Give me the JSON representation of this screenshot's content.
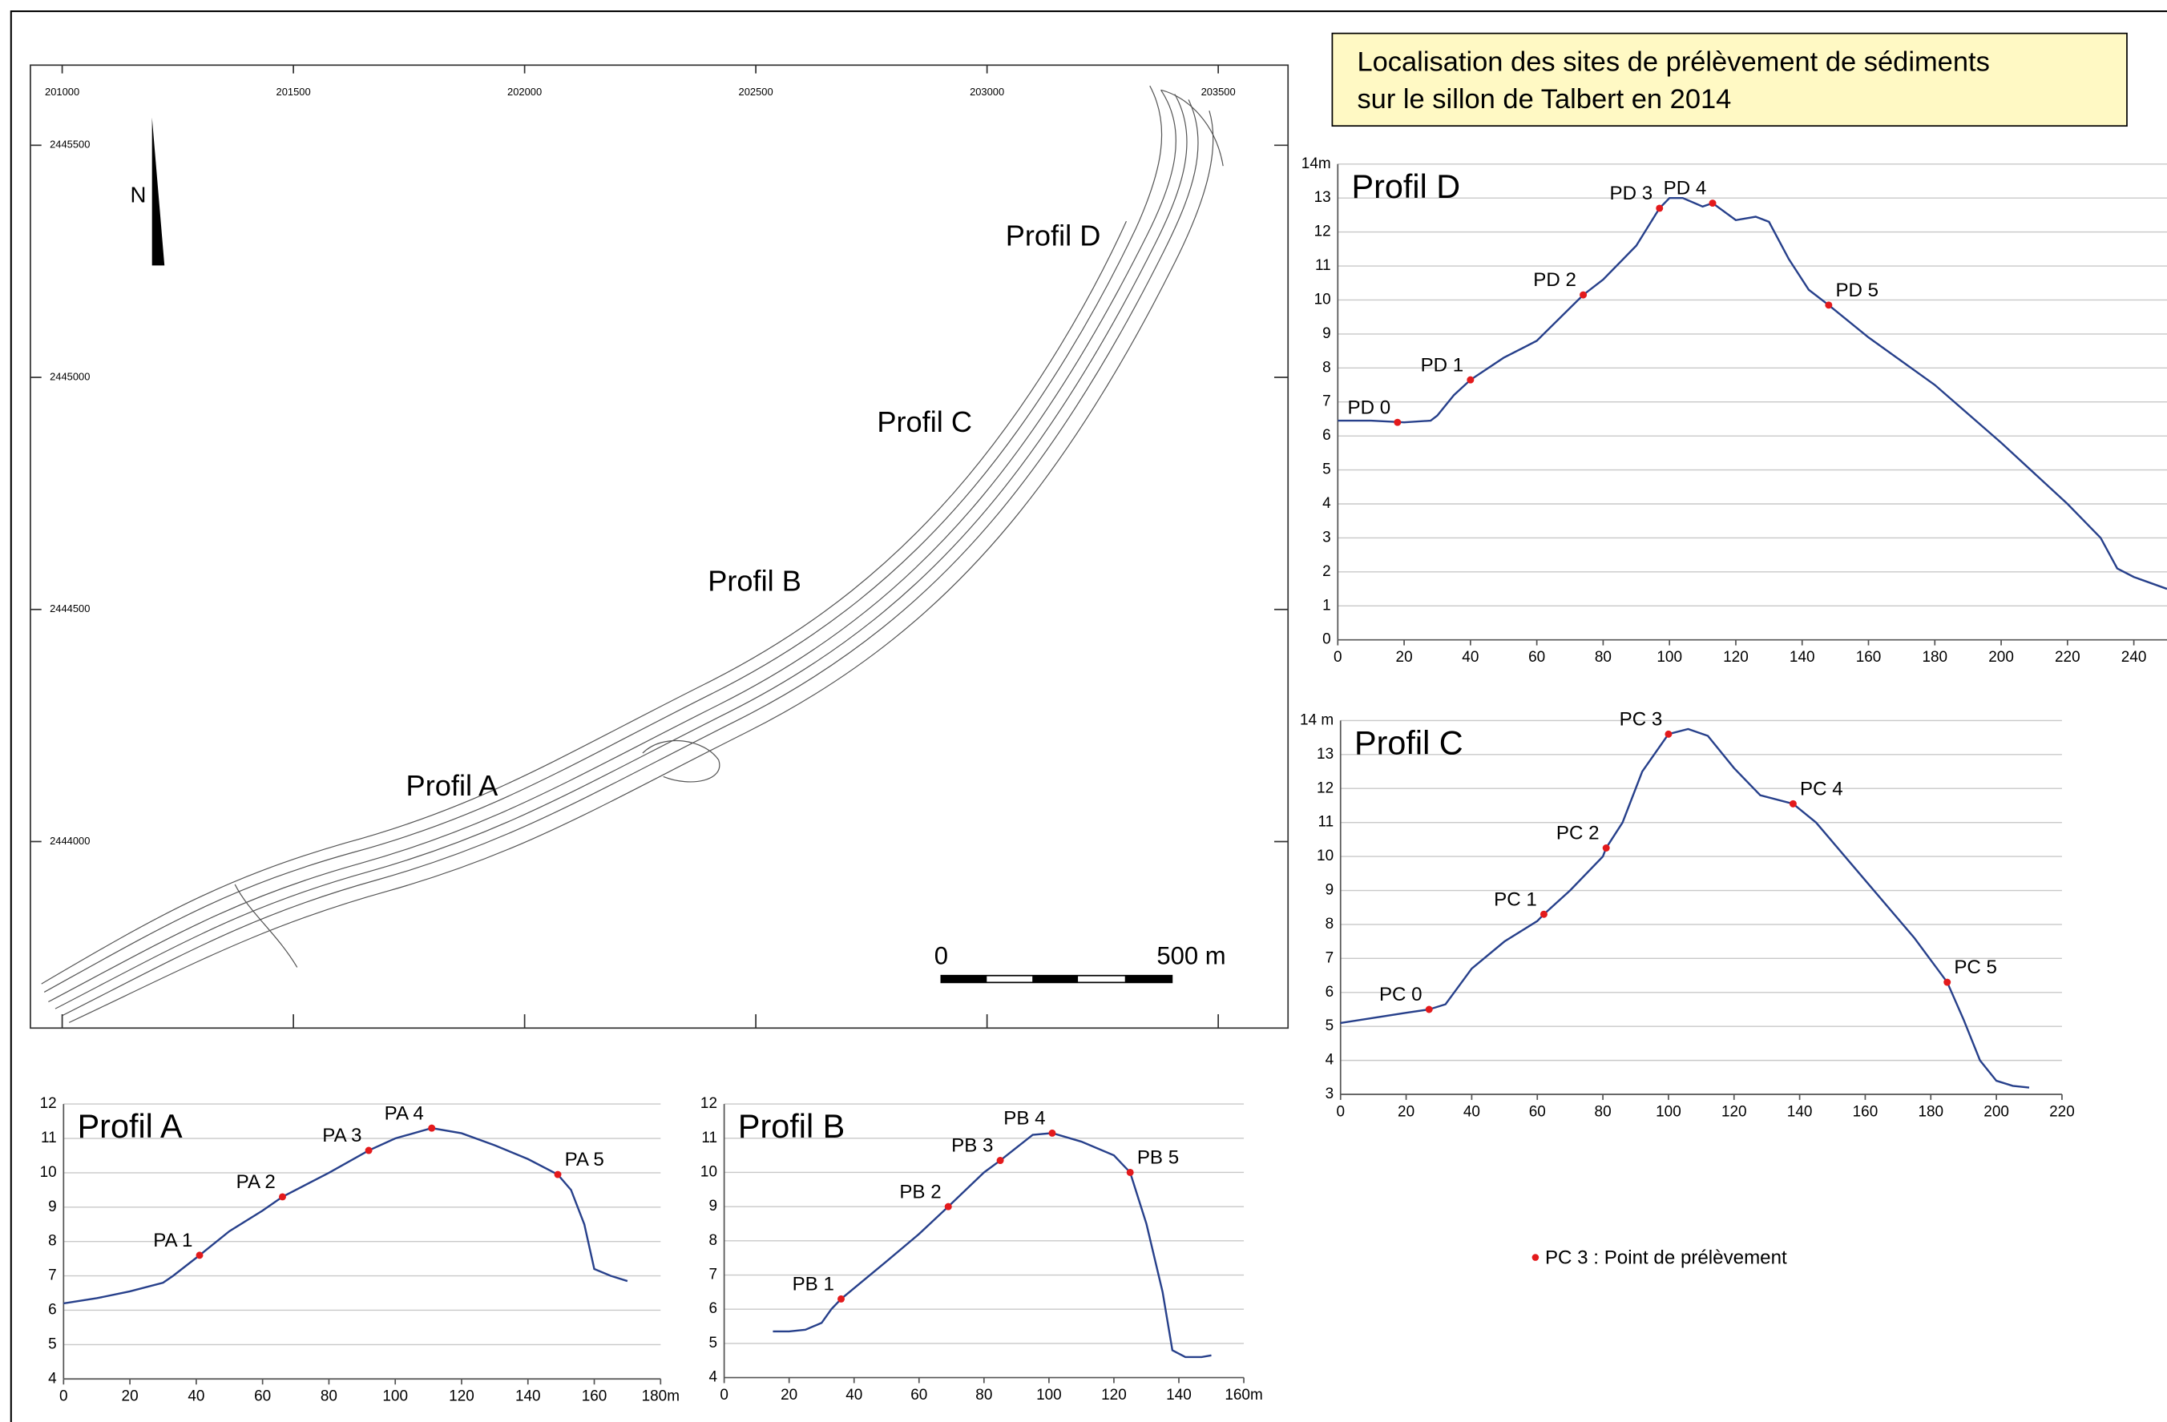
{
  "title_lines": [
    "Localisation des sites de prélèvement de sédiments",
    "sur le sillon de Talbert en 2014"
  ],
  "legend": "PC 3 : Point de prélèvement",
  "map": {
    "x_labels": [
      201000,
      201500,
      202000,
      202500,
      203000,
      203500
    ],
    "y_labels": [
      2445500,
      2445000,
      2444500,
      2444000
    ],
    "profiles": [
      "Profil D",
      "Profil C",
      "Profil B",
      "Profil A"
    ],
    "north": "N",
    "scale_start": "0",
    "scale_end": "500 m"
  },
  "chart_data": [
    {
      "type": "line",
      "title": "Profil D",
      "x": [
        0,
        10,
        20,
        28,
        30,
        35,
        40,
        50,
        60,
        74,
        80,
        90,
        97,
        100,
        104,
        110,
        113,
        120,
        126,
        130,
        136,
        142,
        148,
        160,
        180,
        200,
        220,
        230,
        235,
        240,
        250
      ],
      "series": [
        {
          "color": "#27408b",
          "values": [
            6.45,
            6.45,
            6.4,
            6.45,
            6.6,
            7.2,
            7.65,
            8.3,
            8.8,
            10.15,
            10.6,
            11.6,
            12.7,
            13.0,
            13.0,
            12.75,
            12.85,
            12.35,
            12.45,
            12.3,
            11.2,
            10.3,
            9.85,
            8.9,
            7.5,
            5.8,
            4.0,
            3.0,
            2.1,
            1.85,
            1.5
          ]
        }
      ],
      "points": {
        "color": "#e31a1c",
        "labels": [
          "PD 0",
          "PD 1",
          "PD 2",
          "PD 3",
          "PD 4",
          "PD 5"
        ],
        "x": [
          18,
          40,
          74,
          97,
          113,
          148
        ],
        "values": [
          6.4,
          7.65,
          10.15,
          12.7,
          12.85,
          9.85
        ]
      },
      "xlim": [
        0,
        250
      ],
      "ylim": [
        0,
        14
      ],
      "xticks": [
        0,
        20,
        40,
        60,
        80,
        100,
        120,
        140,
        160,
        180,
        200,
        220,
        240
      ],
      "yticks": [
        0,
        1,
        2,
        3,
        4,
        5,
        6,
        7,
        8,
        9,
        10,
        11,
        12,
        13,
        {
          "value": 14,
          "label": "14m"
        }
      ],
      "grid": true
    },
    {
      "type": "line",
      "title": "Profil C",
      "x": [
        0,
        10,
        20,
        27,
        32,
        40,
        50,
        60,
        62,
        70,
        80,
        81,
        86,
        92,
        100,
        106,
        112,
        120,
        128,
        138,
        145,
        160,
        175,
        185,
        190,
        195,
        200,
        205,
        210
      ],
      "series": [
        {
          "color": "#27408b",
          "values": [
            5.1,
            5.25,
            5.4,
            5.5,
            5.65,
            6.7,
            7.5,
            8.1,
            8.3,
            9.0,
            10.0,
            10.25,
            11.0,
            12.5,
            13.6,
            13.75,
            13.55,
            12.6,
            11.8,
            11.55,
            11.0,
            9.3,
            7.6,
            6.3,
            5.2,
            4.0,
            3.4,
            3.25,
            3.2
          ]
        }
      ],
      "points": {
        "color": "#e31a1c",
        "labels": [
          "PC 0",
          "PC 1",
          "PC 2",
          "PC 3",
          "PC 4",
          "PC 5"
        ],
        "x": [
          27,
          62,
          81,
          100,
          138,
          185
        ],
        "values": [
          5.5,
          8.3,
          10.25,
          13.6,
          11.55,
          6.3
        ]
      },
      "xlim": [
        0,
        220
      ],
      "ylim": [
        3,
        14
      ],
      "xticks": [
        0,
        20,
        40,
        60,
        80,
        100,
        120,
        140,
        160,
        180,
        200,
        220
      ],
      "yticks": [
        3,
        4,
        5,
        6,
        7,
        8,
        9,
        10,
        11,
        12,
        13,
        {
          "value": 14,
          "label": "14 m"
        }
      ],
      "grid": true
    },
    {
      "type": "line",
      "title": "Profil A",
      "x": [
        0,
        10,
        20,
        30,
        33,
        41,
        50,
        60,
        66,
        80,
        92,
        100,
        111,
        120,
        130,
        140,
        149,
        153,
        157,
        160,
        165,
        170
      ],
      "series": [
        {
          "color": "#27408b",
          "values": [
            6.2,
            6.35,
            6.55,
            6.8,
            7.0,
            7.6,
            8.3,
            8.9,
            9.3,
            10.0,
            10.65,
            11.0,
            11.3,
            11.15,
            10.8,
            10.4,
            9.95,
            9.5,
            8.5,
            7.2,
            7.0,
            6.85
          ]
        }
      ],
      "points": {
        "color": "#e31a1c",
        "labels": [
          "PA 1",
          "PA 2",
          "PA 3",
          "PA 4",
          "PA 5"
        ],
        "x": [
          41,
          66,
          92,
          111,
          149
        ],
        "values": [
          7.6,
          9.3,
          10.65,
          11.3,
          9.95
        ]
      },
      "xlim": [
        0,
        180
      ],
      "ylim": [
        4,
        12
      ],
      "xticks": [
        0,
        20,
        40,
        60,
        80,
        100,
        120,
        140,
        160,
        {
          "value": 180,
          "label": "180m"
        }
      ],
      "yticks": [
        4,
        5,
        6,
        7,
        8,
        9,
        10,
        11,
        12
      ],
      "grid": true
    },
    {
      "type": "line",
      "title": "Profil B",
      "x": [
        15,
        20,
        25,
        30,
        33,
        36,
        50,
        60,
        69,
        80,
        85,
        95,
        101,
        110,
        120,
        125,
        130,
        135,
        138,
        142,
        147,
        150
      ],
      "series": [
        {
          "color": "#27408b",
          "values": [
            5.35,
            5.35,
            5.4,
            5.6,
            6.0,
            6.3,
            7.4,
            8.2,
            9.0,
            10.0,
            10.35,
            11.1,
            11.15,
            10.9,
            10.5,
            10.0,
            8.5,
            6.5,
            4.8,
            4.6,
            4.6,
            4.65
          ]
        }
      ],
      "points": {
        "color": "#e31a1c",
        "labels": [
          "PB 1",
          "PB 2",
          "PB 3",
          "PB 4",
          "PB 5"
        ],
        "x": [
          36,
          69,
          85,
          101,
          125
        ],
        "values": [
          6.3,
          9.0,
          10.35,
          11.15,
          10.0
        ]
      },
      "xlim": [
        0,
        160
      ],
      "ylim": [
        4,
        12
      ],
      "xticks": [
        0,
        20,
        40,
        60,
        80,
        100,
        120,
        140,
        {
          "value": 160,
          "label": "160m"
        }
      ],
      "yticks": [
        4,
        5,
        6,
        7,
        8,
        9,
        10,
        11,
        12
      ],
      "grid": true
    }
  ]
}
